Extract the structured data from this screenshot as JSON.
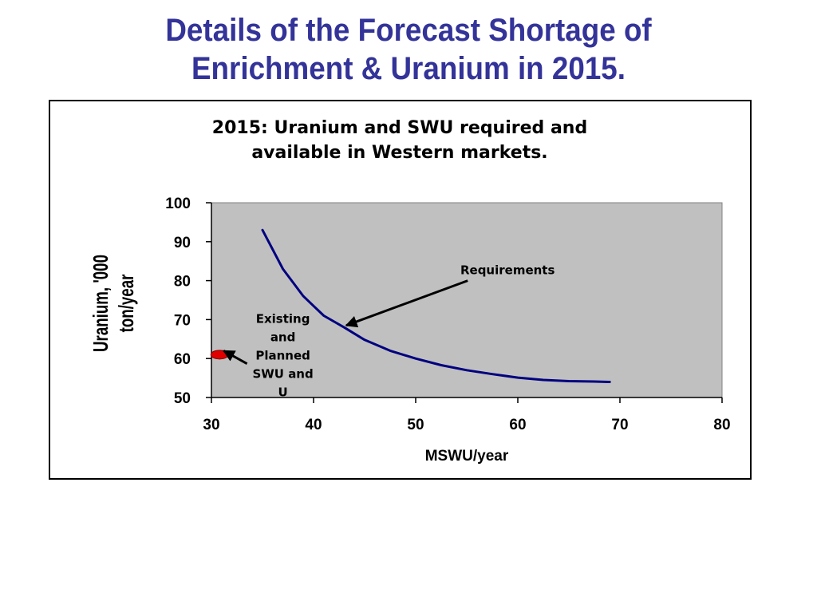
{
  "slide": {
    "title_line1": "Details of the Forecast Shortage of",
    "title_line2": "Enrichment & Uranium in 2015."
  },
  "colors": {
    "title": "#333399",
    "plot_background": "#c0c0c0",
    "series_line": "#000080",
    "marker": "#e00000"
  },
  "chart_data": {
    "type": "line",
    "title": "2015: Uranium and SWU required and available in Western markets.",
    "title_lines": [
      "2015: Uranium and SWU required and",
      "available in Western markets."
    ],
    "xlabel": "MSWU/year",
    "ylabel": "Uranium, '000 ton/year",
    "ylabel_lines": [
      "Uranium, '000",
      "ton/year"
    ],
    "xlim": [
      30,
      80
    ],
    "ylim": [
      50,
      100
    ],
    "xticks": [
      30,
      40,
      50,
      60,
      70,
      80
    ],
    "yticks": [
      50,
      60,
      70,
      80,
      90,
      100
    ],
    "grid": false,
    "legend": "none",
    "series": [
      {
        "name": "Requirements",
        "x": [
          35,
          37,
          39,
          41,
          43,
          45,
          47.5,
          50,
          52.5,
          55,
          57.5,
          60,
          62.5,
          65,
          67.5,
          69
        ],
        "y": [
          93,
          83,
          76,
          71,
          68,
          64.8,
          62,
          60,
          58.3,
          57,
          56,
          55.1,
          54.5,
          54.2,
          54.1,
          54
        ]
      }
    ],
    "points": [
      {
        "name": "Existing and Planned SWU and U",
        "x": 30.8,
        "y": 61
      }
    ],
    "annotations": [
      {
        "text": "Requirements",
        "text_x": 59,
        "text_y": 84.5,
        "arrow_to_x": 43.2,
        "arrow_to_y": 68.5
      },
      {
        "text": "Existing and Planned SWU and U",
        "lines": [
          "Existing",
          "and",
          "Planned",
          "SWU and",
          "U"
        ],
        "text_x": 37,
        "text_y": 72,
        "arrow_to_x": 31.2,
        "arrow_to_y": 62
      }
    ]
  }
}
